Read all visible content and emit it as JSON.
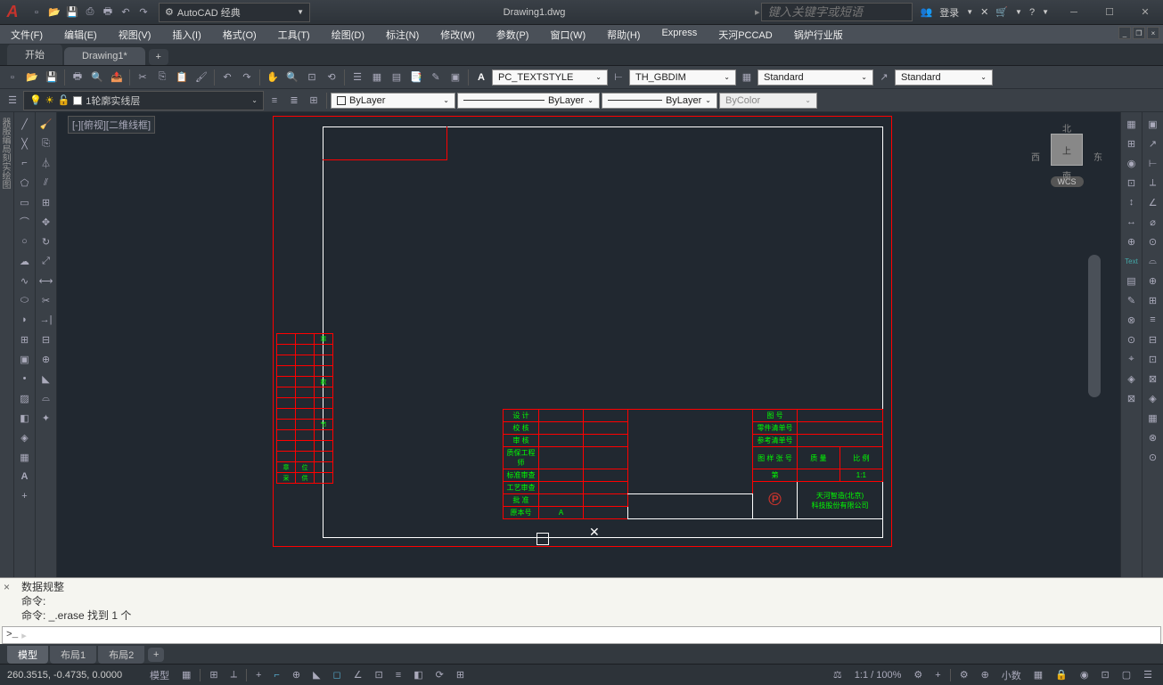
{
  "title": "Drawing1.dwg",
  "workspace": "AutoCAD 经典",
  "search_placeholder": "键入关键字或短语",
  "login": "登录",
  "menus": [
    "文件(F)",
    "编辑(E)",
    "视图(V)",
    "插入(I)",
    "格式(O)",
    "工具(T)",
    "绘图(D)",
    "标注(N)",
    "修改(M)",
    "参数(P)",
    "窗口(W)",
    "帮助(H)",
    "Express",
    "天河PCCAD",
    "锅炉行业版"
  ],
  "tabs": {
    "start": "开始",
    "file": "Drawing1*"
  },
  "layer_current": "1轮廓实线层",
  "styles": {
    "text": "PC_TEXTSTYLE",
    "dim": "TH_GBDIM",
    "std1": "Standard",
    "std2": "Standard"
  },
  "props": {
    "color": "ByLayer",
    "linetype": "ByLayer",
    "lineweight": "ByLayer",
    "plotstyle": "ByColor"
  },
  "viewport_label": "[-][俯视][二维线框]",
  "compass": {
    "n": "北",
    "s": "南",
    "e": "东",
    "w": "西",
    "top": "上"
  },
  "wcs": "WCS",
  "leftblock_rows": [
    [
      "",
      "",
      "章"
    ],
    [
      "",
      "",
      ""
    ],
    [
      "",
      "",
      ""
    ],
    [
      "",
      "",
      ""
    ],
    [
      "",
      "",
      "款"
    ],
    [
      "",
      "",
      ""
    ],
    [
      "",
      "",
      ""
    ],
    [
      "",
      "",
      ""
    ],
    [
      "",
      "",
      "节"
    ],
    [
      "",
      "",
      ""
    ],
    [
      "",
      "",
      ""
    ],
    [
      "",
      "",
      ""
    ],
    [
      "章",
      "位",
      ""
    ],
    [
      "采",
      "供",
      ""
    ]
  ],
  "titleblock": {
    "left_labels": [
      "设 计",
      "校 核",
      "审 核",
      "质保工程师",
      "标准审查",
      "工艺审查",
      "批 准",
      "原本号"
    ],
    "origin_val": "A",
    "right": {
      "r1": "图 号",
      "r2": "零件清单号",
      "r3": "参考清单号",
      "r4_a": "图 样 张 号",
      "r4_b": "质 量",
      "r4_c": "比 例",
      "r5_a": "第",
      "r5_b": "",
      "r5_c": "1:1",
      "company1": "天河智造(北京)",
      "company2": "科技股份有限公司"
    }
  },
  "cmd": {
    "history": [
      "数据规整",
      "命令:",
      "命令: _.erase 找到 1 个"
    ],
    "prompt": ">_"
  },
  "layout_tabs": [
    "模型",
    "布局1",
    "布局2"
  ],
  "status": {
    "coords": "260.3515, -0.4735, 0.0000",
    "model": "模型",
    "scale": "1:1 / 100%",
    "decimal": "小数",
    "vertical_label": "器服编局刻实绘图"
  },
  "colors": {
    "bg": "#212830",
    "panel": "#3a4047",
    "border_red": "#ff0000",
    "text_green": "#00ff00",
    "border_white": "#ffffff"
  }
}
